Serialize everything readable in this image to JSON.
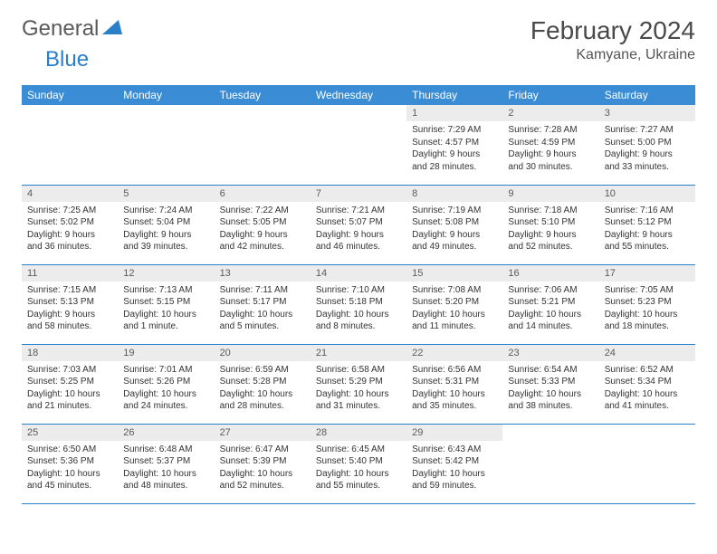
{
  "logo": {
    "general": "General",
    "blue": "Blue"
  },
  "title": "February 2024",
  "location": "Kamyane, Ukraine",
  "colors": {
    "header_bg": "#3a8cd4",
    "border": "#2a7fc9",
    "daynum_bg": "#ececec",
    "text": "#333333",
    "logo_grey": "#5a5a5a",
    "logo_blue": "#2a7fc9"
  },
  "weekdays": [
    "Sunday",
    "Monday",
    "Tuesday",
    "Wednesday",
    "Thursday",
    "Friday",
    "Saturday"
  ],
  "first_weekday_index": 4,
  "days": [
    {
      "n": 1,
      "sunrise": "7:29 AM",
      "sunset": "4:57 PM",
      "daylight": "9 hours and 28 minutes."
    },
    {
      "n": 2,
      "sunrise": "7:28 AM",
      "sunset": "4:59 PM",
      "daylight": "9 hours and 30 minutes."
    },
    {
      "n": 3,
      "sunrise": "7:27 AM",
      "sunset": "5:00 PM",
      "daylight": "9 hours and 33 minutes."
    },
    {
      "n": 4,
      "sunrise": "7:25 AM",
      "sunset": "5:02 PM",
      "daylight": "9 hours and 36 minutes."
    },
    {
      "n": 5,
      "sunrise": "7:24 AM",
      "sunset": "5:04 PM",
      "daylight": "9 hours and 39 minutes."
    },
    {
      "n": 6,
      "sunrise": "7:22 AM",
      "sunset": "5:05 PM",
      "daylight": "9 hours and 42 minutes."
    },
    {
      "n": 7,
      "sunrise": "7:21 AM",
      "sunset": "5:07 PM",
      "daylight": "9 hours and 46 minutes."
    },
    {
      "n": 8,
      "sunrise": "7:19 AM",
      "sunset": "5:08 PM",
      "daylight": "9 hours and 49 minutes."
    },
    {
      "n": 9,
      "sunrise": "7:18 AM",
      "sunset": "5:10 PM",
      "daylight": "9 hours and 52 minutes."
    },
    {
      "n": 10,
      "sunrise": "7:16 AM",
      "sunset": "5:12 PM",
      "daylight": "9 hours and 55 minutes."
    },
    {
      "n": 11,
      "sunrise": "7:15 AM",
      "sunset": "5:13 PM",
      "daylight": "9 hours and 58 minutes."
    },
    {
      "n": 12,
      "sunrise": "7:13 AM",
      "sunset": "5:15 PM",
      "daylight": "10 hours and 1 minute."
    },
    {
      "n": 13,
      "sunrise": "7:11 AM",
      "sunset": "5:17 PM",
      "daylight": "10 hours and 5 minutes."
    },
    {
      "n": 14,
      "sunrise": "7:10 AM",
      "sunset": "5:18 PM",
      "daylight": "10 hours and 8 minutes."
    },
    {
      "n": 15,
      "sunrise": "7:08 AM",
      "sunset": "5:20 PM",
      "daylight": "10 hours and 11 minutes."
    },
    {
      "n": 16,
      "sunrise": "7:06 AM",
      "sunset": "5:21 PM",
      "daylight": "10 hours and 14 minutes."
    },
    {
      "n": 17,
      "sunrise": "7:05 AM",
      "sunset": "5:23 PM",
      "daylight": "10 hours and 18 minutes."
    },
    {
      "n": 18,
      "sunrise": "7:03 AM",
      "sunset": "5:25 PM",
      "daylight": "10 hours and 21 minutes."
    },
    {
      "n": 19,
      "sunrise": "7:01 AM",
      "sunset": "5:26 PM",
      "daylight": "10 hours and 24 minutes."
    },
    {
      "n": 20,
      "sunrise": "6:59 AM",
      "sunset": "5:28 PM",
      "daylight": "10 hours and 28 minutes."
    },
    {
      "n": 21,
      "sunrise": "6:58 AM",
      "sunset": "5:29 PM",
      "daylight": "10 hours and 31 minutes."
    },
    {
      "n": 22,
      "sunrise": "6:56 AM",
      "sunset": "5:31 PM",
      "daylight": "10 hours and 35 minutes."
    },
    {
      "n": 23,
      "sunrise": "6:54 AM",
      "sunset": "5:33 PM",
      "daylight": "10 hours and 38 minutes."
    },
    {
      "n": 24,
      "sunrise": "6:52 AM",
      "sunset": "5:34 PM",
      "daylight": "10 hours and 41 minutes."
    },
    {
      "n": 25,
      "sunrise": "6:50 AM",
      "sunset": "5:36 PM",
      "daylight": "10 hours and 45 minutes."
    },
    {
      "n": 26,
      "sunrise": "6:48 AM",
      "sunset": "5:37 PM",
      "daylight": "10 hours and 48 minutes."
    },
    {
      "n": 27,
      "sunrise": "6:47 AM",
      "sunset": "5:39 PM",
      "daylight": "10 hours and 52 minutes."
    },
    {
      "n": 28,
      "sunrise": "6:45 AM",
      "sunset": "5:40 PM",
      "daylight": "10 hours and 55 minutes."
    },
    {
      "n": 29,
      "sunrise": "6:43 AM",
      "sunset": "5:42 PM",
      "daylight": "10 hours and 59 minutes."
    }
  ],
  "labels": {
    "sunrise": "Sunrise:",
    "sunset": "Sunset:",
    "daylight": "Daylight:"
  }
}
